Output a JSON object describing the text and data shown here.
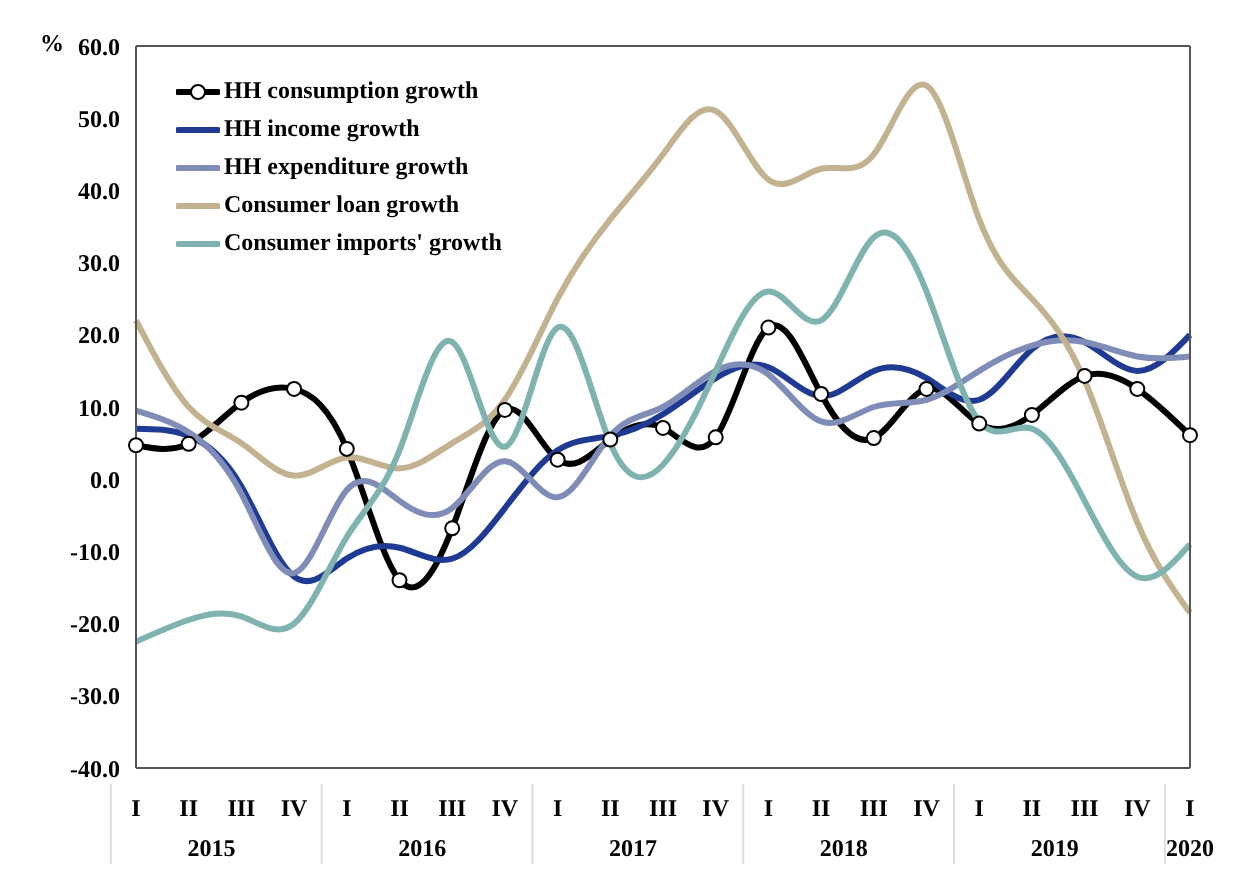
{
  "chart_data": {
    "type": "line",
    "ylabel": "%",
    "categories": [
      "I",
      "II",
      "III",
      "IV",
      "I",
      "II",
      "III",
      "IV",
      "I",
      "II",
      "III",
      "IV",
      "I",
      "II",
      "III",
      "IV",
      "I",
      "II",
      "III",
      "IV",
      "I"
    ],
    "annotations": [
      "2015",
      "2016",
      "2017",
      "2018",
      "2019",
      "2020"
    ],
    "ylim": [
      -40,
      60
    ],
    "yticks": [
      {
        "value": -40,
        "label": "-40.0"
      },
      {
        "value": -30,
        "label": "-30.0"
      },
      {
        "value": -20,
        "label": "-20.0"
      },
      {
        "value": -10,
        "label": "-10.0"
      },
      {
        "value": 0,
        "label": "0.0"
      },
      {
        "value": 10,
        "label": "10.0"
      },
      {
        "value": 20,
        "label": "20.0"
      },
      {
        "value": 30,
        "label": "30.0"
      },
      {
        "value": 40,
        "label": "40.0"
      },
      {
        "value": 50,
        "label": "50.0"
      },
      {
        "value": 60,
        "label": "60.0"
      }
    ],
    "grid": false,
    "legend": "top left",
    "marker": "none",
    "line_style": "solid",
    "series": [
      {
        "name": "HH consumption growth",
        "color": "#000000",
        "marker": "circle",
        "values": [
          4.7,
          4.9,
          10.6,
          12.5,
          4.2,
          -14,
          -6.8,
          9.6,
          2.7,
          5.5,
          7.1,
          5.8,
          21,
          11.8,
          5.7,
          12.5,
          7.7,
          8.9,
          14.3,
          12.5,
          6.1
        ]
      },
      {
        "name": "HH income growth",
        "color": "#1f3a93",
        "values": [
          7,
          6,
          -1,
          -13.5,
          -11,
          -9.5,
          -11,
          -4,
          4,
          6,
          9,
          14,
          15.5,
          11.5,
          15,
          14,
          11,
          18,
          19,
          15,
          20
        ]
      },
      {
        "name": "HH expenditure growth",
        "color": "#7f8cb8",
        "values": [
          9.5,
          6.5,
          -2,
          -13,
          -1.5,
          -3,
          -4,
          2.5,
          -2.5,
          6,
          10,
          15,
          14.5,
          8,
          10,
          11,
          15,
          18.5,
          19,
          17,
          17
        ]
      },
      {
        "name": "Consumer loan growth",
        "color": "#c2b28f",
        "values": [
          22,
          10,
          5,
          0.5,
          3,
          1.5,
          5,
          11,
          25,
          36,
          45,
          51,
          41.5,
          43,
          45,
          54.5,
          36,
          25,
          13.7,
          -6,
          -18.5
        ]
      },
      {
        "name": "Consumer imports' growth",
        "color": "#7fb3b0",
        "values": [
          -22.5,
          -19.5,
          -19,
          -20,
          -8,
          4,
          19,
          4.5,
          21,
          5,
          2,
          15,
          26,
          22,
          33.5,
          26,
          8,
          7,
          -3,
          -13.5,
          -9
        ]
      }
    ]
  }
}
